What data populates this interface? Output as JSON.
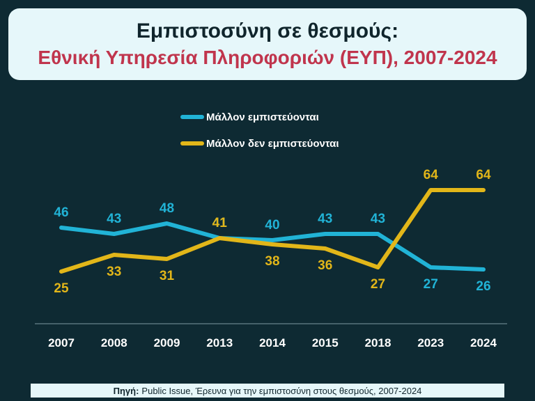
{
  "header": {
    "title": "Εμπιστοσύνη σε θεσμούς:",
    "subtitle": "Εθνική Υπηρεσία Πληροφοριών (ΕΥΠ), 2007-2024"
  },
  "chart_data": {
    "type": "line",
    "categories": [
      "2007",
      "2008",
      "2009",
      "2013",
      "2014",
      "2015",
      "2018",
      "2023",
      "2024"
    ],
    "series": [
      {
        "name": "Μάλλον εμπιστεύονται",
        "color": "#21b3d6",
        "values": [
          46,
          43,
          48,
          41,
          40,
          43,
          43,
          27,
          26
        ]
      },
      {
        "name": "Μάλλον δεν εμπιστεύονται",
        "color": "#e2b619",
        "values": [
          25,
          33,
          31,
          41,
          38,
          36,
          27,
          64,
          64
        ]
      }
    ],
    "ylim": [
      0,
      80
    ],
    "grid": false,
    "legend": "top-center"
  },
  "footer": {
    "label": "Πηγή:",
    "text": "Public Issue, Έρευνα για την εμπιστοσύνη στους θεσμούς, 2007-2024"
  }
}
